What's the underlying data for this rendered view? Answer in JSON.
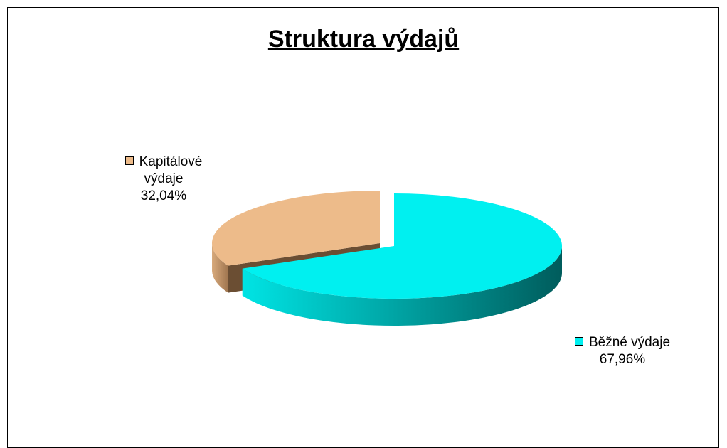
{
  "chart_data": {
    "type": "pie",
    "title": "Struktura výdajů",
    "categories": [
      "Kapitálové výdaje",
      "Běžné výdaje"
    ],
    "values": [
      32.04,
      67.96
    ],
    "value_labels": [
      "32,04%",
      "67,96%"
    ],
    "colors": [
      "#edbb8a",
      "#00f0f0"
    ]
  }
}
